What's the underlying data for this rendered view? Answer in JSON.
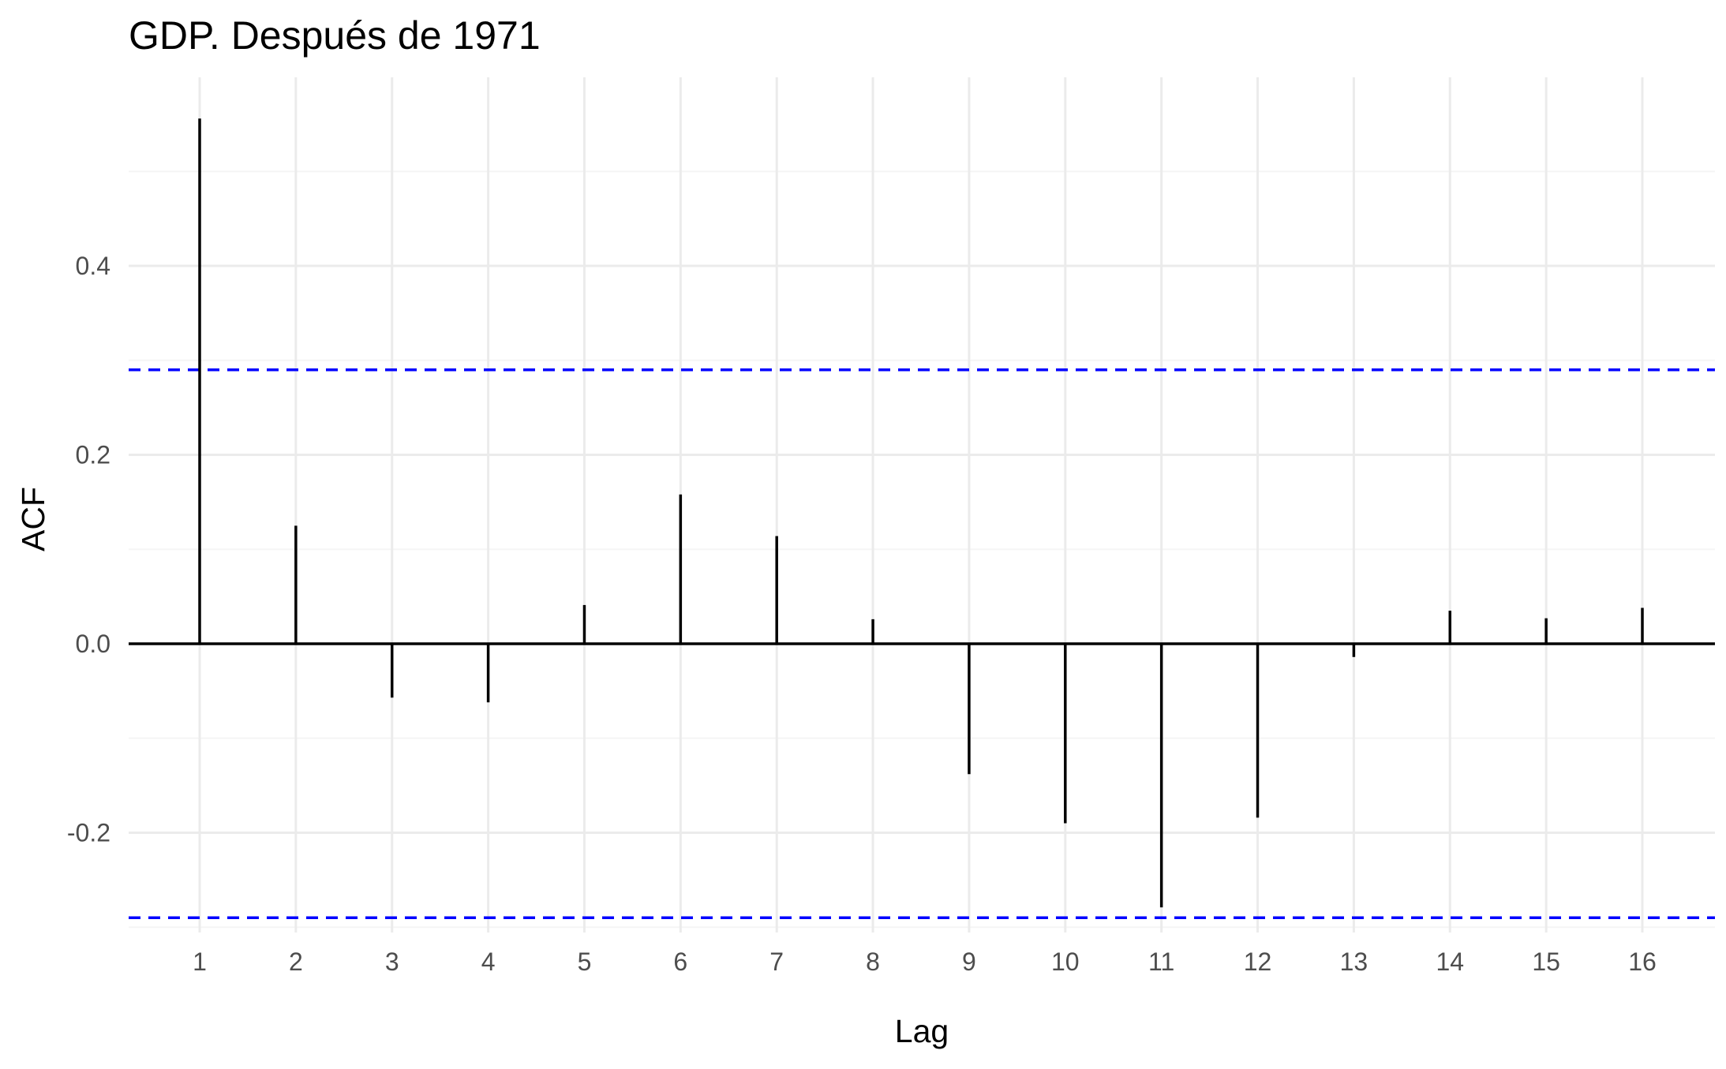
{
  "chart_data": {
    "type": "bar",
    "title": "GDP. Después de 1971",
    "xlabel": "Lag",
    "ylabel": "ACF",
    "x": [
      1,
      2,
      3,
      4,
      5,
      6,
      7,
      8,
      9,
      10,
      11,
      12,
      13,
      14,
      15,
      16
    ],
    "values": [
      0.556,
      0.125,
      -0.057,
      -0.062,
      0.041,
      0.158,
      0.114,
      0.026,
      -0.138,
      -0.19,
      -0.279,
      -0.184,
      -0.014,
      0.035,
      0.027,
      0.038
    ],
    "xlim": [
      0.25,
      16.75
    ],
    "ylim": [
      -0.3,
      0.56
    ],
    "y_ticks": [
      -0.2,
      0.0,
      0.2,
      0.4
    ],
    "y_tick_labels": [
      "-0.2",
      "0.0",
      "0.2",
      "0.4"
    ],
    "x_tick_labels": [
      "1",
      "2",
      "3",
      "4",
      "5",
      "6",
      "7",
      "8",
      "9",
      "10",
      "11",
      "12",
      "13",
      "14",
      "15",
      "16"
    ],
    "confidence_bounds": [
      0.29,
      -0.29
    ],
    "grid": true,
    "legend": "none",
    "colors": {
      "spike": "#000000",
      "zero_line": "#000000",
      "confidence": "#0000ff",
      "grid_major": "#ebebeb",
      "grid_minor": "#f5f5f5",
      "tick_text": "#4d4d4d"
    }
  }
}
